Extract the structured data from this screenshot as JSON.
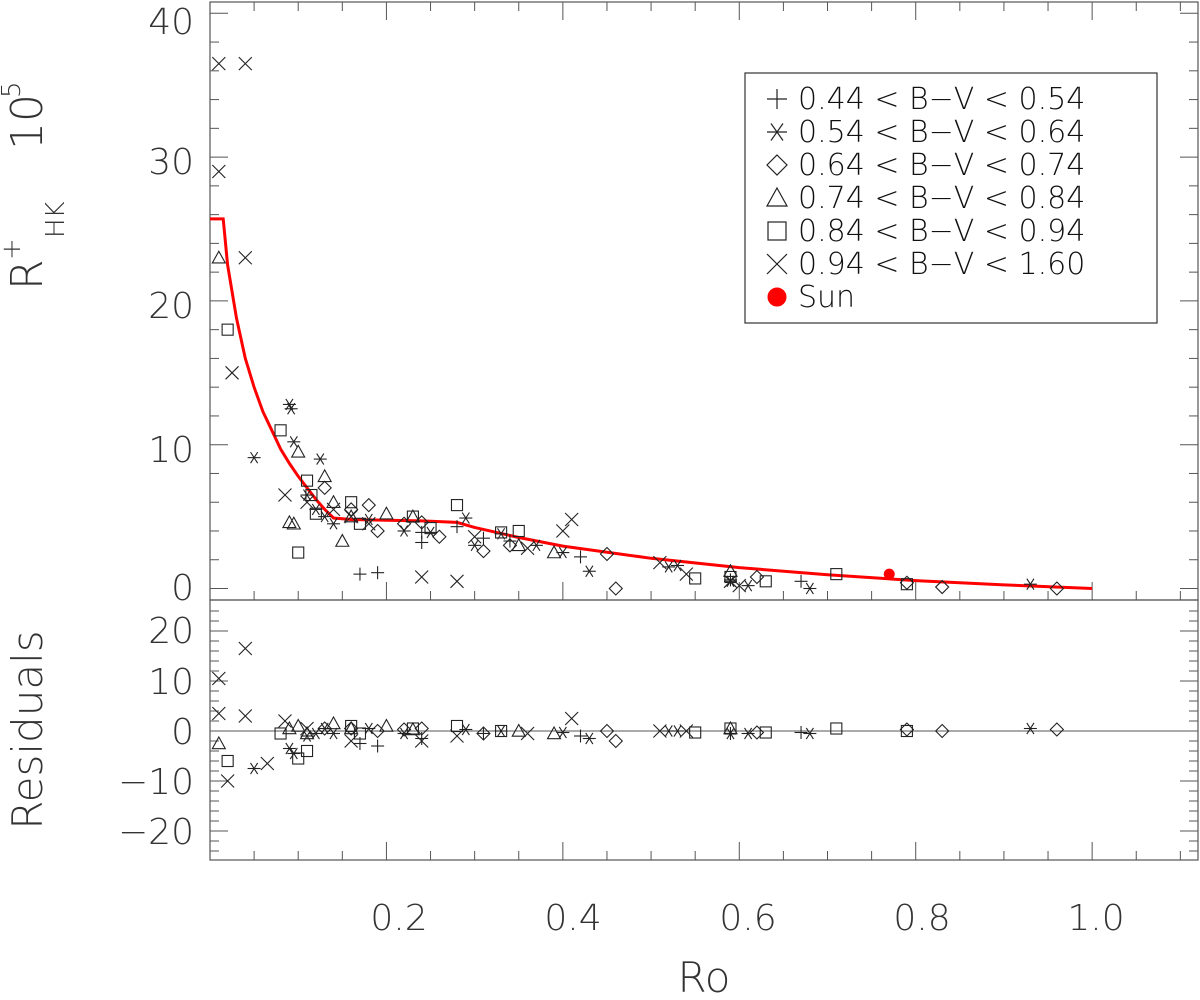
{
  "chart_data": [
    {
      "type": "scatter",
      "panel": "top",
      "ylabel": "R+HK 10^5",
      "ylabel_parts": {
        "main": "R",
        "sup": "+",
        "sub": "HK",
        "factor": "10",
        "factor_sup": "5"
      },
      "xlim": [
        0.0,
        1.12
      ],
      "ylim": [
        -1,
        40
      ],
      "yticks": [
        "0",
        "10",
        "20",
        "30",
        "40"
      ],
      "legend_position": "top-right",
      "series": [
        {
          "name": "0.44 < B−V < 0.54",
          "marker": "plus",
          "x": [
            0.17,
            0.19,
            0.24,
            0.31,
            0.34,
            0.42,
            0.59,
            0.67,
            0.24,
            0.28
          ],
          "y": [
            1.0,
            1.1,
            3.2,
            3.5,
            3.3,
            2.2,
            0.6,
            0.5,
            3.9,
            4.3
          ]
        },
        {
          "name": "0.54 < B−V < 0.64",
          "marker": "asterisk",
          "x": [
            0.05,
            0.09,
            0.092,
            0.095,
            0.11,
            0.12,
            0.125,
            0.13,
            0.14,
            0.18,
            0.22,
            0.25,
            0.29,
            0.3,
            0.33,
            0.37,
            0.4,
            0.43,
            0.52,
            0.53,
            0.59,
            0.61,
            0.68,
            0.93
          ],
          "y": [
            9.1,
            12.8,
            12.5,
            10.2,
            6.5,
            5.5,
            9.0,
            5.0,
            4.5,
            4.8,
            4.0,
            3.9,
            4.9,
            3.0,
            3.8,
            3.0,
            2.5,
            1.2,
            1.5,
            1.6,
            0.5,
            0.2,
            0.0,
            0.3
          ]
        },
        {
          "name": "0.64 < B−V < 0.74",
          "marker": "diamond",
          "x": [
            0.13,
            0.16,
            0.18,
            0.19,
            0.22,
            0.24,
            0.26,
            0.31,
            0.34,
            0.45,
            0.46,
            0.62,
            0.79,
            0.83,
            0.96
          ],
          "y": [
            7.0,
            5.5,
            5.8,
            4.0,
            4.5,
            4.6,
            3.6,
            2.6,
            3.0,
            2.4,
            0.0,
            0.8,
            0.4,
            0.1,
            0.0
          ]
        },
        {
          "name": "0.74 < B−V < 0.84",
          "marker": "triangle",
          "x": [
            0.01,
            0.09,
            0.095,
            0.1,
            0.13,
            0.14,
            0.15,
            0.16,
            0.2,
            0.23,
            0.35,
            0.39,
            0.59
          ],
          "y": [
            23.0,
            4.6,
            4.5,
            9.5,
            7.8,
            6.0,
            3.3,
            5.0,
            5.2,
            5.0,
            3.0,
            2.5,
            1.2
          ]
        },
        {
          "name": "0.84 < B−V < 0.94",
          "marker": "square",
          "x": [
            0.02,
            0.08,
            0.1,
            0.11,
            0.115,
            0.12,
            0.16,
            0.17,
            0.23,
            0.25,
            0.28,
            0.33,
            0.35,
            0.55,
            0.59,
            0.63,
            0.71,
            0.79
          ],
          "y": [
            18.0,
            11.0,
            2.5,
            7.5,
            6.5,
            5.2,
            6.0,
            4.5,
            5.0,
            4.2,
            5.8,
            3.9,
            4.0,
            0.7,
            0.8,
            0.5,
            1.0,
            0.3
          ]
        },
        {
          "name": "0.94 < B−V < 1.60",
          "marker": "cross",
          "x": [
            0.01,
            0.01,
            0.025,
            0.04,
            0.04,
            0.085,
            0.11,
            0.14,
            0.16,
            0.18,
            0.24,
            0.28,
            0.3,
            0.36,
            0.4,
            0.41,
            0.51,
            0.54,
            0.59,
            0.6
          ],
          "y": [
            36.5,
            29.0,
            15.0,
            36.5,
            23.0,
            6.5,
            6.0,
            5.5,
            5.0,
            4.5,
            0.8,
            0.5,
            3.6,
            2.8,
            4.0,
            4.8,
            1.8,
            1.0,
            0.5,
            0.2
          ]
        },
        {
          "name": "Sun",
          "marker": "filled-circle",
          "color": "#ff0000",
          "x": [
            0.77
          ],
          "y": [
            1.0
          ]
        }
      ],
      "fit": {
        "color": "#ff0000",
        "x": [
          0.0,
          0.015,
          0.015,
          0.02,
          0.03,
          0.04,
          0.05,
          0.06,
          0.07,
          0.08,
          0.09,
          0.1,
          0.11,
          0.12,
          0.13,
          0.14,
          0.16,
          0.2,
          0.24,
          0.28,
          0.3,
          0.35,
          0.4,
          0.5,
          0.6,
          0.7,
          0.8,
          0.9,
          1.0
        ],
        "y": [
          25.7,
          25.7,
          25.7,
          22.5,
          18.8,
          16.0,
          14.0,
          12.3,
          11.0,
          9.7,
          8.7,
          7.8,
          7.0,
          6.2,
          5.5,
          4.9,
          4.8,
          4.75,
          4.7,
          4.6,
          4.25,
          3.55,
          2.95,
          2.1,
          1.45,
          0.95,
          0.55,
          0.25,
          0.0
        ]
      }
    },
    {
      "type": "scatter",
      "panel": "bottom",
      "ylabel": "Residuals",
      "xlabel": "Ro",
      "xlim": [
        0.0,
        1.12
      ],
      "ylim": [
        -26,
        26
      ],
      "xticks": [
        "0.2",
        "0.4",
        "0.6",
        "0.8",
        "1.0"
      ],
      "yticks": [
        "20",
        "10",
        "0",
        "−10",
        "−20"
      ],
      "zero_line": true,
      "series": [
        {
          "name": "0.44 < B−V < 0.54",
          "marker": "plus",
          "x": [
            0.17,
            0.19,
            0.24,
            0.31,
            0.42,
            0.59,
            0.67
          ],
          "y": [
            -2.5,
            -3.0,
            -1.5,
            -0.5,
            -1.0,
            -0.5,
            -0.3
          ]
        },
        {
          "name": "0.54 < B−V < 0.64",
          "marker": "asterisk",
          "x": [
            0.05,
            0.09,
            0.095,
            0.11,
            0.12,
            0.13,
            0.14,
            0.18,
            0.22,
            0.29,
            0.33,
            0.4,
            0.43,
            0.52,
            0.53,
            0.59,
            0.61,
            0.68,
            0.93
          ],
          "y": [
            -7.5,
            -3.5,
            -4.5,
            -1.0,
            -0.5,
            0.5,
            -0.5,
            0.5,
            -0.5,
            0.3,
            0.0,
            -0.3,
            -1.5,
            0.0,
            0.0,
            -0.5,
            -0.5,
            -0.5,
            0.5
          ]
        },
        {
          "name": "0.64 < B−V < 0.74",
          "marker": "diamond",
          "x": [
            0.13,
            0.16,
            0.19,
            0.22,
            0.24,
            0.31,
            0.45,
            0.46,
            0.62,
            0.79,
            0.83,
            0.96
          ],
          "y": [
            0.5,
            0.5,
            0.0,
            0.3,
            0.5,
            -0.5,
            0.0,
            -2.0,
            -0.3,
            0.3,
            0.0,
            0.3
          ]
        },
        {
          "name": "0.74 < B−V < 0.84",
          "marker": "triangle",
          "x": [
            0.01,
            0.09,
            0.1,
            0.11,
            0.14,
            0.16,
            0.2,
            0.23,
            0.35,
            0.39,
            0.59
          ],
          "y": [
            -2.5,
            0.5,
            1.0,
            -0.5,
            1.5,
            0.5,
            1.0,
            0.3,
            0.0,
            -0.5,
            0.5
          ]
        },
        {
          "name": "0.84 < B−V < 0.94",
          "marker": "square",
          "x": [
            0.02,
            0.08,
            0.1,
            0.11,
            0.16,
            0.17,
            0.23,
            0.28,
            0.33,
            0.55,
            0.59,
            0.63,
            0.71,
            0.79
          ],
          "y": [
            -6.0,
            -0.5,
            -5.5,
            -4.0,
            1.0,
            -0.5,
            0.5,
            1.0,
            0.0,
            -0.3,
            0.5,
            -0.3,
            0.5,
            0.0
          ]
        },
        {
          "name": "0.94 < B−V < 1.60",
          "marker": "cross",
          "x": [
            0.01,
            0.01,
            0.02,
            0.04,
            0.04,
            0.065,
            0.085,
            0.11,
            0.16,
            0.24,
            0.28,
            0.36,
            0.41,
            0.51,
            0.54
          ],
          "y": [
            10.5,
            3.5,
            -10.0,
            16.5,
            3.0,
            -6.5,
            2.0,
            0.5,
            -2.0,
            -2.0,
            -1.0,
            -0.5,
            2.5,
            0.0,
            0.0
          ]
        }
      ]
    }
  ]
}
